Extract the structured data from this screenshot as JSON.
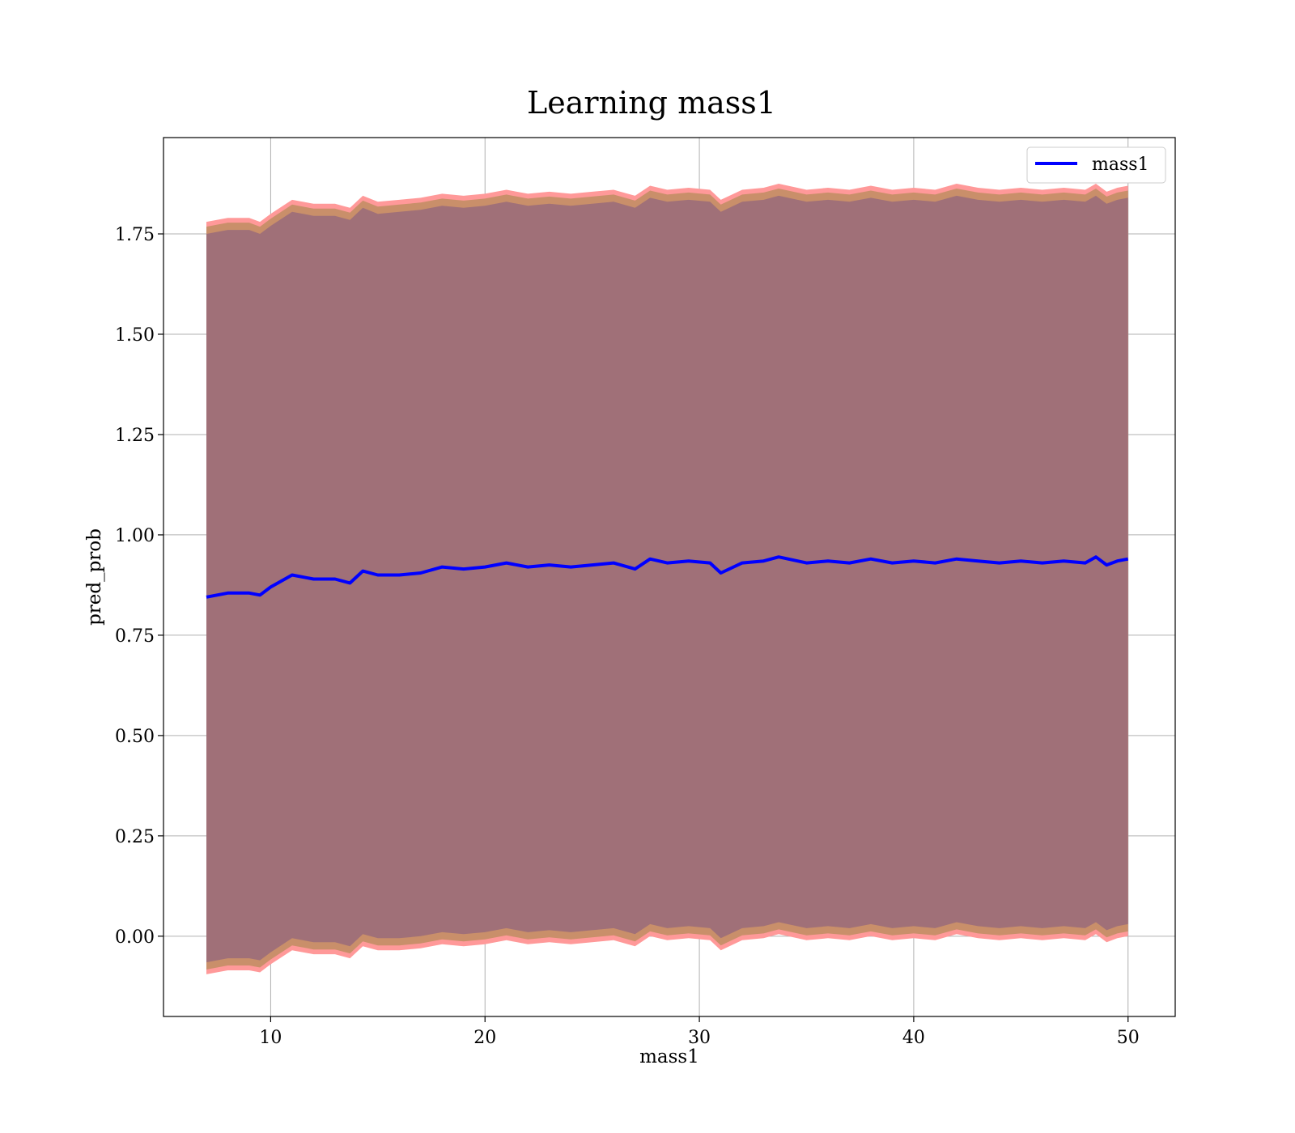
{
  "chart_data": {
    "type": "line",
    "title": "Learning mass1",
    "xlabel": "mass1",
    "ylabel": "pred_prob",
    "xlim": [
      5,
      52.2
    ],
    "ylim": [
      -0.2,
      1.99
    ],
    "xticks": [
      10,
      20,
      30,
      40,
      50
    ],
    "xtick_labels": [
      "10",
      "20",
      "30",
      "40",
      "50"
    ],
    "yticks": [
      0.0,
      0.25,
      0.5,
      0.75,
      1.0,
      1.25,
      1.5,
      1.75
    ],
    "ytick_labels": [
      "0.00",
      "0.25",
      "0.50",
      "0.75",
      "1.00",
      "1.25",
      "1.50",
      "1.75"
    ],
    "grid": true,
    "legend_position": "top-right",
    "colors": {
      "line": "#0000ff",
      "outer_band": "#ff9999",
      "middle_band": "#c98f6a",
      "inner_band": "#a07078"
    },
    "series": [
      {
        "name": "mass1",
        "style": "line",
        "x": [
          7.0,
          8.0,
          9.0,
          9.5,
          10.0,
          11.0,
          12.0,
          13.0,
          13.7,
          14.3,
          15.0,
          16.0,
          17.0,
          18.0,
          19.0,
          20.0,
          21.0,
          22.0,
          23.0,
          24.0,
          25.0,
          26.0,
          27.0,
          27.7,
          28.5,
          29.5,
          30.5,
          31.0,
          32.0,
          33.0,
          33.7,
          35.0,
          36.0,
          37.0,
          38.0,
          39.0,
          40.0,
          41.0,
          42.0,
          43.0,
          44.0,
          45.0,
          46.0,
          47.0,
          48.0,
          48.5,
          49.0,
          49.5,
          50.0
        ],
        "y": [
          0.845,
          0.855,
          0.855,
          0.85,
          0.87,
          0.9,
          0.89,
          0.89,
          0.88,
          0.91,
          0.9,
          0.9,
          0.905,
          0.92,
          0.915,
          0.92,
          0.93,
          0.92,
          0.925,
          0.92,
          0.925,
          0.93,
          0.915,
          0.94,
          0.93,
          0.935,
          0.93,
          0.905,
          0.93,
          0.935,
          0.945,
          0.93,
          0.935,
          0.93,
          0.94,
          0.93,
          0.935,
          0.93,
          0.94,
          0.935,
          0.93,
          0.935,
          0.93,
          0.935,
          0.93,
          0.945,
          0.925,
          0.935,
          0.94
        ]
      },
      {
        "name": "",
        "style": "band",
        "x": [
          7.0,
          8.0,
          9.0,
          9.5,
          10.0,
          11.0,
          12.0,
          13.0,
          13.7,
          14.3,
          15.0,
          16.0,
          17.0,
          18.0,
          19.0,
          20.0,
          21.0,
          22.0,
          23.0,
          24.0,
          25.0,
          26.0,
          27.0,
          27.7,
          28.5,
          29.5,
          30.5,
          31.0,
          32.0,
          33.0,
          33.7,
          35.0,
          36.0,
          37.0,
          38.0,
          39.0,
          40.0,
          41.0,
          42.0,
          43.0,
          44.0,
          45.0,
          46.0,
          47.0,
          48.0,
          48.5,
          49.0,
          49.5,
          50.0
        ],
        "upper": [
          1.78,
          1.79,
          1.79,
          1.78,
          1.8,
          1.835,
          1.825,
          1.825,
          1.815,
          1.845,
          1.83,
          1.835,
          1.84,
          1.85,
          1.845,
          1.85,
          1.86,
          1.85,
          1.855,
          1.85,
          1.855,
          1.86,
          1.845,
          1.87,
          1.86,
          1.865,
          1.86,
          1.835,
          1.86,
          1.865,
          1.875,
          1.86,
          1.865,
          1.86,
          1.87,
          1.86,
          1.865,
          1.86,
          1.875,
          1.865,
          1.86,
          1.865,
          1.86,
          1.865,
          1.86,
          1.875,
          1.855,
          1.865,
          1.87
        ],
        "lower": [
          -0.095,
          -0.085,
          -0.085,
          -0.09,
          -0.07,
          -0.035,
          -0.045,
          -0.045,
          -0.055,
          -0.025,
          -0.035,
          -0.035,
          -0.03,
          -0.02,
          -0.025,
          -0.02,
          -0.01,
          -0.02,
          -0.015,
          -0.02,
          -0.015,
          -0.01,
          -0.025,
          0.0,
          -0.01,
          -0.005,
          -0.01,
          -0.035,
          -0.01,
          -0.005,
          0.005,
          -0.01,
          -0.005,
          -0.01,
          0.0,
          -0.01,
          -0.005,
          -0.01,
          0.005,
          -0.005,
          -0.01,
          -0.005,
          -0.01,
          -0.005,
          -0.01,
          0.005,
          -0.015,
          -0.005,
          0.0
        ]
      }
    ]
  }
}
